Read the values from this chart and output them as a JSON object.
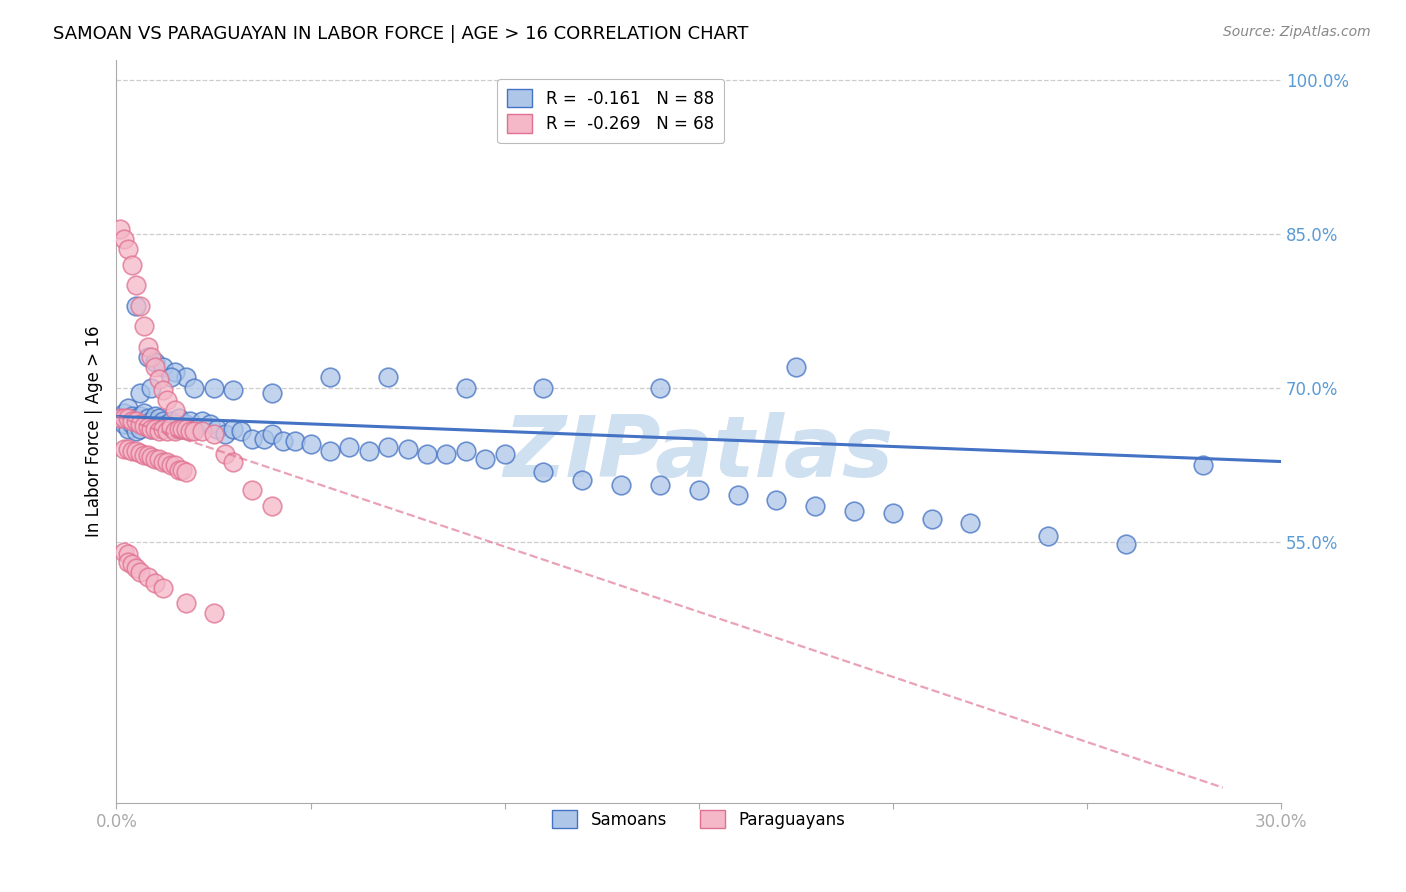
{
  "title": "SAMOAN VS PARAGUAYAN IN LABOR FORCE | AGE > 16 CORRELATION CHART",
  "source": "Source: ZipAtlas.com",
  "ylabel": "In Labor Force | Age > 16",
  "xlim": [
    0.0,
    0.3
  ],
  "ylim": [
    0.295,
    1.02
  ],
  "xticks": [
    0.0,
    0.05,
    0.1,
    0.15,
    0.2,
    0.25,
    0.3
  ],
  "xticklabels": [
    "0.0%",
    "",
    "",
    "",
    "",
    "",
    "30.0%"
  ],
  "yticks": [
    0.55,
    0.7,
    0.85,
    1.0
  ],
  "yticklabels": [
    "55.0%",
    "70.0%",
    "85.0%",
    "100.0%"
  ],
  "ytick_color": "#5b9bd5",
  "xtick_color": "#5b9bd5",
  "grid_color": "#c8c8c8",
  "background_color": "#ffffff",
  "watermark": "ZIPatlas",
  "watermark_color": "#cfe0f0",
  "samoan_color": "#aec6e8",
  "paraguayan_color": "#f4b8c8",
  "samoan_edge_color": "#4472c4",
  "paraguayan_edge_color": "#e07090",
  "legend_samoan_label": "R =  -0.161   N = 88",
  "legend_paraguayan_label": "R =  -0.269   N = 68",
  "samoan_trend_x": [
    0.0,
    0.3
  ],
  "samoan_trend_y": [
    0.672,
    0.628
  ],
  "paraguayan_trend_x": [
    0.0,
    0.285
  ],
  "paraguayan_trend_y": [
    0.672,
    0.31
  ],
  "title_fontsize": 13,
  "source_fontsize": 10,
  "tick_fontsize": 12,
  "ylabel_fontsize": 12,
  "legend_fontsize": 12,
  "samoan_scatter_x": [
    0.001,
    0.002,
    0.002,
    0.003,
    0.003,
    0.004,
    0.004,
    0.005,
    0.005,
    0.006,
    0.006,
    0.007,
    0.007,
    0.008,
    0.008,
    0.009,
    0.009,
    0.01,
    0.01,
    0.011,
    0.011,
    0.012,
    0.012,
    0.013,
    0.014,
    0.015,
    0.015,
    0.016,
    0.017,
    0.018,
    0.019,
    0.02,
    0.022,
    0.024,
    0.026,
    0.028,
    0.03,
    0.032,
    0.035,
    0.038,
    0.04,
    0.043,
    0.046,
    0.05,
    0.055,
    0.06,
    0.065,
    0.07,
    0.075,
    0.08,
    0.085,
    0.09,
    0.095,
    0.1,
    0.11,
    0.12,
    0.13,
    0.14,
    0.15,
    0.16,
    0.17,
    0.18,
    0.19,
    0.2,
    0.21,
    0.22,
    0.24,
    0.26,
    0.005,
    0.008,
    0.01,
    0.012,
    0.015,
    0.018,
    0.02,
    0.025,
    0.03,
    0.04,
    0.055,
    0.07,
    0.09,
    0.11,
    0.14,
    0.175,
    0.006,
    0.009,
    0.014,
    0.28
  ],
  "samoan_scatter_y": [
    0.67,
    0.665,
    0.675,
    0.66,
    0.68,
    0.665,
    0.672,
    0.658,
    0.67,
    0.66,
    0.672,
    0.668,
    0.675,
    0.663,
    0.67,
    0.668,
    0.66,
    0.666,
    0.672,
    0.665,
    0.67,
    0.668,
    0.66,
    0.665,
    0.668,
    0.66,
    0.665,
    0.67,
    0.66,
    0.665,
    0.668,
    0.66,
    0.668,
    0.665,
    0.66,
    0.655,
    0.66,
    0.658,
    0.65,
    0.65,
    0.655,
    0.648,
    0.648,
    0.645,
    0.638,
    0.642,
    0.638,
    0.642,
    0.64,
    0.635,
    0.635,
    0.638,
    0.63,
    0.635,
    0.618,
    0.61,
    0.605,
    0.605,
    0.6,
    0.595,
    0.59,
    0.585,
    0.58,
    0.578,
    0.572,
    0.568,
    0.555,
    0.548,
    0.78,
    0.73,
    0.725,
    0.72,
    0.715,
    0.71,
    0.7,
    0.7,
    0.698,
    0.695,
    0.71,
    0.71,
    0.7,
    0.7,
    0.7,
    0.72,
    0.695,
    0.7,
    0.71,
    0.625
  ],
  "paraguayan_scatter_x": [
    0.001,
    0.001,
    0.002,
    0.002,
    0.003,
    0.003,
    0.004,
    0.004,
    0.005,
    0.005,
    0.006,
    0.006,
    0.007,
    0.007,
    0.008,
    0.008,
    0.009,
    0.009,
    0.01,
    0.01,
    0.011,
    0.011,
    0.012,
    0.012,
    0.013,
    0.013,
    0.014,
    0.015,
    0.015,
    0.016,
    0.017,
    0.018,
    0.019,
    0.02,
    0.022,
    0.025,
    0.028,
    0.03,
    0.035,
    0.04,
    0.002,
    0.003,
    0.004,
    0.005,
    0.006,
    0.007,
    0.008,
    0.009,
    0.01,
    0.011,
    0.012,
    0.013,
    0.014,
    0.015,
    0.016,
    0.017,
    0.018,
    0.002,
    0.003,
    0.003,
    0.004,
    0.005,
    0.006,
    0.008,
    0.01,
    0.012,
    0.018,
    0.025
  ],
  "paraguayan_scatter_y": [
    0.67,
    0.855,
    0.67,
    0.845,
    0.67,
    0.835,
    0.668,
    0.82,
    0.668,
    0.8,
    0.665,
    0.78,
    0.663,
    0.76,
    0.662,
    0.74,
    0.66,
    0.73,
    0.66,
    0.72,
    0.658,
    0.708,
    0.66,
    0.698,
    0.658,
    0.688,
    0.662,
    0.658,
    0.678,
    0.66,
    0.66,
    0.66,
    0.658,
    0.658,
    0.658,
    0.655,
    0.635,
    0.628,
    0.6,
    0.585,
    0.64,
    0.64,
    0.638,
    0.638,
    0.636,
    0.634,
    0.634,
    0.632,
    0.63,
    0.63,
    0.628,
    0.628,
    0.625,
    0.625,
    0.62,
    0.62,
    0.618,
    0.54,
    0.538,
    0.53,
    0.528,
    0.524,
    0.52,
    0.515,
    0.51,
    0.505,
    0.49,
    0.48
  ]
}
